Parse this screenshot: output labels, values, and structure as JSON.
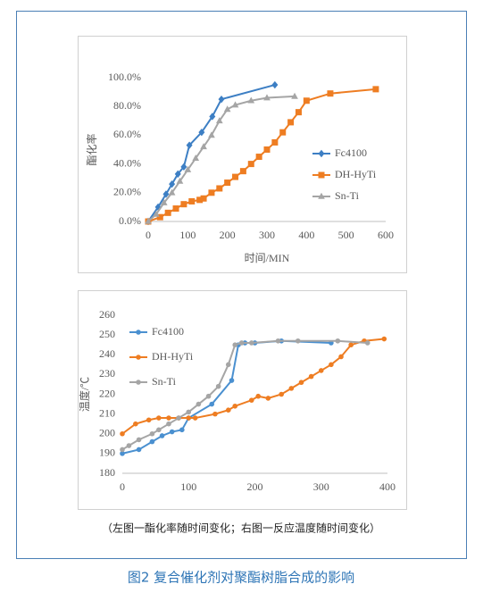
{
  "chart_data": [
    {
      "type": "line",
      "x_label": "时间/MIN",
      "y_label": "酯化率",
      "xlim": [
        0,
        600
      ],
      "xticks": [
        0,
        100,
        200,
        300,
        400,
        500,
        600
      ],
      "ylim": [
        0,
        100
      ],
      "yticks": [
        {
          "value": 0,
          "label": "0.0%"
        },
        {
          "value": 20,
          "label": "20.0%"
        },
        {
          "value": 40,
          "label": "40.0%"
        },
        {
          "value": 60,
          "label": "60.0%"
        },
        {
          "value": 80,
          "label": "80.0%"
        },
        {
          "value": 100,
          "label": "100.0%"
        }
      ],
      "grid": false,
      "legend": "right",
      "series": [
        {
          "name": "Fc4100",
          "color": "#3d7fc4",
          "marker": "diamond",
          "x": [
            0,
            25,
            45,
            60,
            75,
            90,
            104,
            135,
            162,
            185,
            320
          ],
          "values": [
            0,
            10,
            19,
            26,
            33,
            38,
            53,
            62,
            73,
            85,
            95
          ]
        },
        {
          "name": "DH-HyTi",
          "color": "#ee7d22",
          "marker": "square",
          "x": [
            0,
            30,
            50,
            70,
            90,
            110,
            130,
            140,
            160,
            180,
            200,
            220,
            240,
            260,
            280,
            300,
            320,
            340,
            360,
            380,
            400,
            460,
            575
          ],
          "values": [
            0,
            3,
            6,
            9,
            12,
            14,
            15,
            16,
            20,
            23,
            27,
            31,
            35,
            40,
            45,
            50,
            55,
            62,
            69,
            76,
            84,
            89,
            92
          ]
        },
        {
          "name": "Sn-Ti",
          "color": "#a5a5a5",
          "marker": "triangle",
          "x": [
            0,
            20,
            40,
            60,
            80,
            100,
            120,
            140,
            160,
            180,
            200,
            220,
            260,
            300,
            370
          ],
          "values": [
            0,
            5,
            13,
            20,
            28,
            36,
            44,
            52,
            60,
            70,
            78,
            81,
            84,
            86,
            87
          ]
        }
      ]
    },
    {
      "type": "line",
      "y_label": "温度/℃",
      "xlim": [
        0,
        400
      ],
      "xticks": [
        0,
        100,
        200,
        300,
        400
      ],
      "ylim": [
        180,
        260
      ],
      "yticks": [
        180,
        190,
        200,
        210,
        220,
        230,
        240,
        250,
        260
      ],
      "grid": false,
      "legend": "upper left",
      "series": [
        {
          "name": "Fc4100",
          "color": "#4a90d0",
          "marker": "circle",
          "x": [
            0,
            25,
            45,
            60,
            75,
            90,
            100,
            135,
            165,
            175,
            185,
            200,
            240,
            315
          ],
          "values": [
            190,
            192,
            196,
            199,
            201,
            202,
            208,
            215,
            227,
            245,
            246,
            246,
            247,
            246
          ]
        },
        {
          "name": "DH-HyTi",
          "color": "#ee7d22",
          "marker": "circle",
          "x": [
            0,
            20,
            40,
            55,
            70,
            85,
            100,
            110,
            140,
            160,
            170,
            195,
            205,
            220,
            240,
            255,
            270,
            285,
            300,
            315,
            330,
            345,
            365,
            395
          ],
          "values": [
            200,
            205,
            207,
            208,
            208,
            208,
            208,
            208,
            210,
            212,
            214,
            217,
            219,
            218,
            220,
            223,
            226,
            229,
            232,
            235,
            239,
            245,
            247,
            248
          ]
        },
        {
          "name": "Sn-Ti",
          "color": "#a5a5a5",
          "marker": "circle",
          "x": [
            0,
            10,
            25,
            45,
            55,
            70,
            85,
            100,
            115,
            130,
            145,
            160,
            170,
            180,
            195,
            235,
            265,
            325,
            370
          ],
          "values": [
            192,
            194,
            197,
            200,
            202,
            205,
            208,
            211,
            215,
            219,
            224,
            235,
            245,
            246,
            246,
            247,
            247,
            247,
            246
          ]
        }
      ]
    }
  ],
  "caption": "（左图一酯化率随时间变化；右图一反应温度随时间变化）",
  "figure_title": "图2 复合催化剂对聚酯树脂合成的影响"
}
